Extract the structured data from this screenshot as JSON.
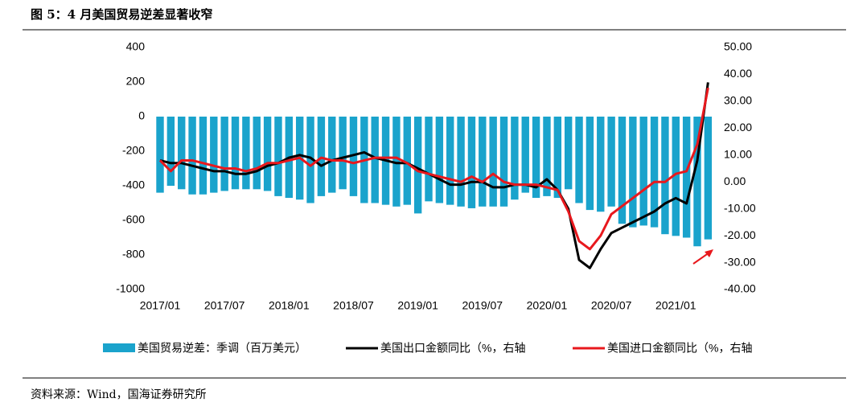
{
  "chart_data": {
    "type": "bar_line",
    "title": "图 5：4 月美国贸易逆差显著收窄",
    "source": "资料来源：Wind，国海证券研究所",
    "categories": [
      "2017/01",
      null,
      null,
      null,
      null,
      null,
      "2017/07",
      null,
      null,
      null,
      null,
      null,
      "2018/01",
      null,
      null,
      null,
      null,
      null,
      "2018/07",
      null,
      null,
      null,
      null,
      null,
      "2019/01",
      null,
      null,
      null,
      null,
      null,
      "2019/07",
      null,
      null,
      null,
      null,
      null,
      "2020/01",
      null,
      null,
      null,
      null,
      null,
      "2020/07",
      null,
      null,
      null,
      null,
      null,
      "2021/01",
      null,
      null,
      null
    ],
    "ylim": [
      -1000,
      400
    ],
    "yticks": [
      -1000,
      -800,
      -600,
      -400,
      -200,
      0,
      200,
      400
    ],
    "y2lim": [
      -40,
      50
    ],
    "y2ticks": [
      {
        "value": -40,
        "label": "-40.00"
      },
      {
        "value": -30,
        "label": "-30.00"
      },
      {
        "value": -20,
        "label": "-20.00"
      },
      {
        "value": -10,
        "label": "-10.00"
      },
      {
        "value": 0,
        "label": "0.00"
      },
      {
        "value": 10,
        "label": "10.00"
      },
      {
        "value": 20,
        "label": "20.00"
      },
      {
        "value": 30,
        "label": "30.00"
      },
      {
        "value": 40,
        "label": "40.00"
      },
      {
        "value": 50,
        "label": "50.00"
      }
    ],
    "legend": "bottom",
    "series": [
      {
        "name": "美国贸易逆差：季调（百万美元）",
        "type": "bar",
        "color": "#1aa3cc",
        "values": [
          -440,
          -400,
          -420,
          -450,
          -450,
          -440,
          -430,
          -420,
          -420,
          -420,
          -430,
          -460,
          -470,
          -480,
          -500,
          -460,
          -440,
          -420,
          -460,
          -500,
          -500,
          -510,
          -520,
          -510,
          -560,
          -490,
          -500,
          -510,
          -520,
          -530,
          -520,
          -520,
          -520,
          -480,
          -440,
          -470,
          -460,
          -470,
          -420,
          -500,
          -540,
          -550,
          -520,
          -620,
          -640,
          -630,
          -640,
          -680,
          -690,
          -700,
          -750,
          -710
        ]
      },
      {
        "name": "美国出口金额同比（%，右轴",
        "type": "line",
        "axis": "y2",
        "color": "#000000",
        "values": [
          8,
          7,
          7,
          6,
          5,
          4,
          4,
          3,
          3,
          4,
          6,
          7,
          9,
          10,
          9,
          6,
          8,
          9,
          10,
          11,
          9,
          8,
          7,
          7,
          5,
          3,
          1,
          -1,
          -1,
          0,
          0,
          -2,
          -2,
          -1,
          -1,
          -2,
          1,
          -3,
          -10,
          -29,
          -32,
          -25,
          -19,
          -17,
          -15,
          -13,
          -11,
          -8,
          -6,
          -8,
          8,
          37
        ]
      },
      {
        "name": "美国进口金额同比（%，右轴",
        "type": "line",
        "axis": "y2",
        "color": "#e8181d",
        "values": [
          8,
          4,
          8,
          8,
          7,
          6,
          5,
          5,
          4,
          5,
          7,
          7,
          8,
          9,
          6,
          9,
          8,
          8,
          7,
          8,
          9,
          9,
          9,
          7,
          4,
          3,
          2,
          1,
          0,
          2,
          0,
          3,
          0,
          -1,
          -1,
          -1,
          -2,
          -3,
          -11,
          -22,
          -25,
          -20,
          -12,
          -9,
          -6,
          -3,
          0,
          0,
          3,
          4,
          14,
          35
        ]
      }
    ]
  }
}
